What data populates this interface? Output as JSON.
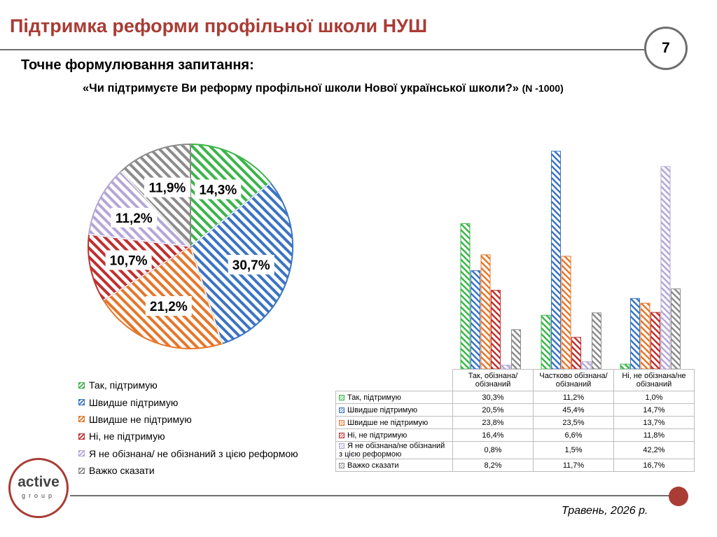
{
  "page": {
    "title": "Підтримка реформи профільної школи НУШ",
    "page_number": "7",
    "question_label": "Точне формулювання запитання:",
    "question_text": "«Чи підтримуєте Ви реформу профільної школи Нової української школи?»",
    "question_n": "(N -1000)",
    "date": "Травень, 2026 р.",
    "logo_main": "active",
    "logo_sub": "group"
  },
  "colors": {
    "brand": "#a93c35",
    "green": "#3cb54a",
    "blue": "#3a74c4",
    "orange": "#e6772b",
    "red": "#c0302e",
    "lavender": "#b4a7d6",
    "gray": "#8c8c8c"
  },
  "chart_data": [
    {
      "type": "pie",
      "title": "",
      "slices": [
        {
          "label": "Так, підтримую",
          "value": 14.3,
          "value_label": "14,3%",
          "color": "#3cb54a"
        },
        {
          "label": "Швидше підтримую",
          "value": 30.7,
          "value_label": "30,7%",
          "color": "#3a74c4"
        },
        {
          "label": "Швидше не підтримую",
          "value": 21.2,
          "value_label": "21,2%",
          "color": "#e6772b"
        },
        {
          "label": "Ні, не підтримую",
          "value": 10.7,
          "value_label": "10,7%",
          "color": "#c0302e"
        },
        {
          "label": "Я не обізнана/ не обізнаний з цією реформою",
          "value": 11.2,
          "value_label": "11,2%",
          "color": "#b4a7d6"
        },
        {
          "label": "Важко сказати",
          "value": 11.9,
          "value_label": "11,9%",
          "color": "#8c8c8c"
        }
      ],
      "legend_position": "bottom-left"
    },
    {
      "type": "bar",
      "title": "",
      "categories": [
        "Так, обізнана/обізнаний",
        "Частково обізнана/обізнаний",
        "Ні, не обізнана/не обізнаний"
      ],
      "series": [
        {
          "name": "Так, підтримую",
          "values": [
            30.3,
            11.2,
            1.0
          ],
          "labels": [
            "30,3%",
            "11,2%",
            "1,0%"
          ],
          "color": "#3cb54a"
        },
        {
          "name": "Швидше підтримую",
          "values": [
            20.5,
            45.4,
            14.7
          ],
          "labels": [
            "20,5%",
            "45,4%",
            "14,7%"
          ],
          "color": "#3a74c4"
        },
        {
          "name": "Швидше не підтримую",
          "values": [
            23.8,
            23.5,
            13.7
          ],
          "labels": [
            "23,8%",
            "23,5%",
            "13,7%"
          ],
          "color": "#e6772b"
        },
        {
          "name": "Ні, не підтримую",
          "values": [
            16.4,
            6.6,
            11.8
          ],
          "labels": [
            "16,4%",
            "6,6%",
            "11,8%"
          ],
          "color": "#c0302e"
        },
        {
          "name": "Я не обізнана/не обізнаний з цією реформою",
          "values": [
            0.8,
            1.5,
            42.2
          ],
          "labels": [
            "0,8%",
            "1,5%",
            "42,2%"
          ],
          "color": "#b4a7d6"
        },
        {
          "name": "Важко сказати",
          "values": [
            8.2,
            11.7,
            16.7
          ],
          "labels": [
            "8,2%",
            "11,7%",
            "16,7%"
          ],
          "color": "#8c8c8c"
        }
      ],
      "ylim": [
        0,
        47
      ],
      "grid": false,
      "legend_position": "data-table-below"
    }
  ]
}
